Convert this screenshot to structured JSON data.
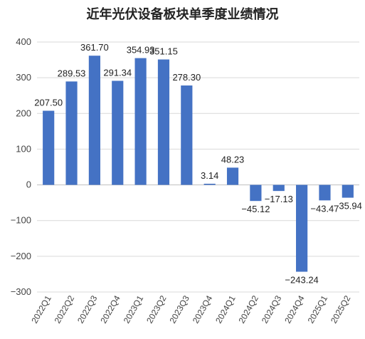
{
  "chart_data": {
    "type": "bar",
    "title": "近年光伏设备板块单季度业绩情况",
    "xlabel": "",
    "ylabel": "",
    "categories": [
      "2022Q1",
      "2022Q2",
      "2022Q3",
      "2022Q4",
      "2023Q1",
      "2023Q2",
      "2023Q3",
      "2023Q4",
      "2024Q1",
      "2024Q2",
      "2024Q3",
      "2024Q4",
      "2025Q1",
      "2025Q2"
    ],
    "values": [
      207.5,
      289.53,
      361.7,
      291.34,
      354.93,
      351.15,
      278.3,
      3.14,
      48.23,
      -45.12,
      -17.13,
      -243.24,
      -43.47,
      -35.94
    ],
    "data_labels": [
      "207.50",
      "289.53",
      "361.70",
      "291.34",
      "354.93",
      "351.15",
      "278.30",
      "3.14",
      "48.23",
      "−45.12",
      "−17.13",
      "−243.24",
      "−43.47",
      "−35.94"
    ],
    "ylim": [
      -300,
      400
    ],
    "yticks": [
      -300,
      -200,
      -100,
      0,
      100,
      200,
      300,
      400
    ],
    "ytick_labels": [
      "−300",
      "−200",
      "−100",
      "0",
      "100",
      "200",
      "300",
      "400"
    ],
    "grid": true,
    "legend": "none",
    "colors": {
      "bar": "#4472C4",
      "grid": "#d9d9d9",
      "axis": "#bfbfbf"
    }
  }
}
